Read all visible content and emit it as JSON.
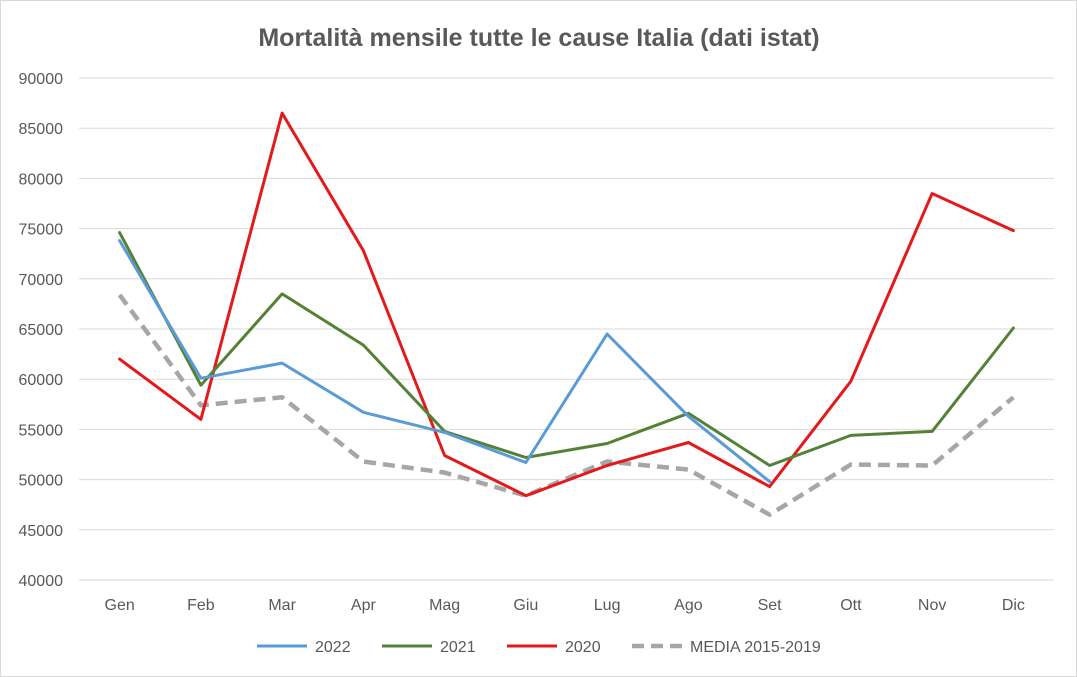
{
  "chart_data": {
    "type": "line",
    "title": "Mortalità mensile tutte le cause Italia (dati istat)",
    "xlabel": "",
    "ylabel": "",
    "categories": [
      "Gen",
      "Feb",
      "Mar",
      "Apr",
      "Mag",
      "Giu",
      "Lug",
      "Ago",
      "Set",
      "Ott",
      "Nov",
      "Dic"
    ],
    "ylim": [
      40000,
      90000
    ],
    "yticks": [
      40000,
      45000,
      50000,
      55000,
      60000,
      65000,
      70000,
      75000,
      80000,
      85000,
      90000
    ],
    "grid": true,
    "legend_position": "bottom",
    "series": [
      {
        "name": "2022",
        "color": "#5b9bd5",
        "dashed": false,
        "values": [
          73800,
          60100,
          61600,
          56700,
          54700,
          51700,
          64500,
          56300,
          49800,
          null,
          null,
          null
        ]
      },
      {
        "name": "2021",
        "color": "#548235",
        "dashed": false,
        "values": [
          74600,
          59400,
          68500,
          63400,
          54800,
          52200,
          53600,
          56600,
          51400,
          54400,
          54800,
          65100
        ]
      },
      {
        "name": "2020",
        "color": "#e31a1c",
        "dashed": false,
        "values": [
          62000,
          56000,
          86500,
          72800,
          52400,
          48400,
          51400,
          53700,
          49300,
          59800,
          78500,
          74800
        ]
      },
      {
        "name": "MEDIA 2015-2019",
        "color": "#a6a6a6",
        "dashed": true,
        "values": [
          68400,
          57400,
          58200,
          51800,
          50700,
          48400,
          51800,
          51000,
          46500,
          51500,
          51400,
          58200
        ]
      }
    ]
  }
}
